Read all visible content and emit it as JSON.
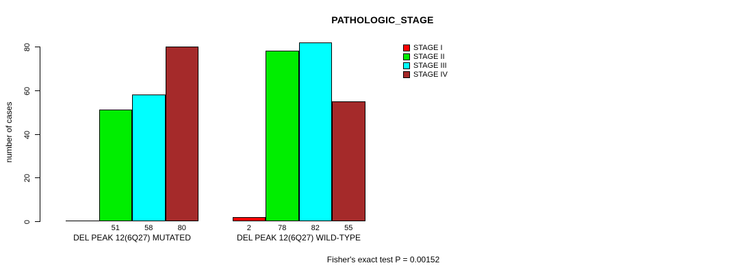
{
  "chart_data": {
    "type": "bar",
    "title": "PATHOLOGIC_STAGE",
    "ylabel": "number of cases",
    "xlabel": "",
    "footer": "Fisher's exact test P = 0.00152",
    "ylim": [
      0,
      80
    ],
    "yticks": [
      0,
      20,
      40,
      60,
      80
    ],
    "grid": false,
    "legend_position": "top-right",
    "categories": [
      "DEL PEAK 12(6Q27) MUTATED",
      "DEL PEAK 12(6Q27) WILD-TYPE"
    ],
    "series": [
      {
        "name": "STAGE I",
        "color": "#FF0000",
        "values": [
          0,
          2
        ]
      },
      {
        "name": "STAGE II",
        "color": "#00EE00",
        "values": [
          51,
          78
        ]
      },
      {
        "name": "STAGE III",
        "color": "#00FFFF",
        "values": [
          58,
          82
        ]
      },
      {
        "name": "STAGE IV",
        "color": "#A52A2A",
        "values": [
          80,
          55
        ]
      }
    ],
    "bar_value_labels": [
      [
        "",
        "51",
        "58",
        "80"
      ],
      [
        "2",
        "78",
        "82",
        "55"
      ]
    ],
    "colors": {
      "background": "#FFFFFF",
      "axis": "#000000",
      "bar_border": "#000000"
    }
  }
}
